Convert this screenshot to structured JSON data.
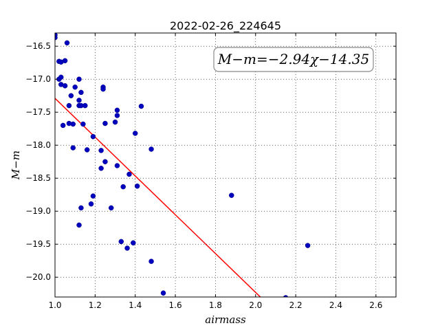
{
  "chart_data": {
    "type": "scatter",
    "title": "2022-02-26_224645",
    "xlabel": "airmass",
    "ylabel": "M−m",
    "xlim": [
      1.0,
      2.7
    ],
    "ylim": [
      -20.3,
      -16.3
    ],
    "xticks": [
      1.0,
      1.2,
      1.4,
      1.6,
      1.8,
      2.0,
      2.2,
      2.4,
      2.6
    ],
    "yticks": [
      -16.5,
      -17.0,
      -17.5,
      -18.0,
      -18.5,
      -19.0,
      -19.5,
      -20.0
    ],
    "xtick_labels": [
      "1.0",
      "1.2",
      "1.4",
      "1.6",
      "1.8",
      "2.0",
      "2.2",
      "2.4",
      "2.6"
    ],
    "ytick_labels": [
      "−16.5",
      "−17.0",
      "−17.5",
      "−18.0",
      "−18.5",
      "−19.0",
      "−19.5",
      "−20.0"
    ],
    "grid": true,
    "point_color": "#0000bf",
    "fit_color": "#ff0000",
    "annotation": "M−m=−2.94χ−14.35",
    "fit": {
      "slope": -2.94,
      "intercept": -14.35
    },
    "points": [
      [
        1.0,
        -16.33
      ],
      [
        1.0,
        -16.37
      ],
      [
        1.02,
        -16.73
      ],
      [
        1.03,
        -16.74
      ],
      [
        1.05,
        -16.72
      ],
      [
        1.06,
        -16.45
      ],
      [
        1.02,
        -17.0
      ],
      [
        1.03,
        -16.97
      ],
      [
        1.03,
        -17.08
      ],
      [
        1.05,
        -17.1
      ],
      [
        1.1,
        -17.12
      ],
      [
        1.12,
        -17.0
      ],
      [
        1.24,
        -17.12
      ],
      [
        1.24,
        -17.15
      ],
      [
        1.08,
        -17.25
      ],
      [
        1.13,
        -17.2
      ],
      [
        1.12,
        -17.32
      ],
      [
        1.07,
        -17.4
      ],
      [
        1.12,
        -17.4
      ],
      [
        1.13,
        -17.4
      ],
      [
        1.15,
        -17.4
      ],
      [
        1.31,
        -17.47
      ],
      [
        1.43,
        -17.41
      ],
      [
        1.31,
        -17.55
      ],
      [
        1.04,
        -17.7
      ],
      [
        1.07,
        -17.67
      ],
      [
        1.09,
        -17.68
      ],
      [
        1.14,
        -17.68
      ],
      [
        1.25,
        -17.67
      ],
      [
        1.3,
        -17.65
      ],
      [
        1.4,
        -17.82
      ],
      [
        1.19,
        -17.87
      ],
      [
        1.09,
        -18.04
      ],
      [
        1.16,
        -18.07
      ],
      [
        1.23,
        -18.08
      ],
      [
        1.48,
        -18.06
      ],
      [
        1.25,
        -18.25
      ],
      [
        1.23,
        -18.35
      ],
      [
        1.31,
        -18.31
      ],
      [
        1.37,
        -18.44
      ],
      [
        1.34,
        -18.63
      ],
      [
        1.41,
        -18.62
      ],
      [
        1.19,
        -18.77
      ],
      [
        1.88,
        -18.76
      ],
      [
        1.13,
        -18.95
      ],
      [
        1.18,
        -18.89
      ],
      [
        1.28,
        -18.95
      ],
      [
        1.12,
        -19.21
      ],
      [
        1.33,
        -19.46
      ],
      [
        1.39,
        -19.48
      ],
      [
        1.36,
        -19.56
      ],
      [
        2.26,
        -19.52
      ],
      [
        1.48,
        -19.76
      ],
      [
        1.54,
        -20.24
      ],
      [
        2.15,
        -20.31
      ]
    ]
  }
}
